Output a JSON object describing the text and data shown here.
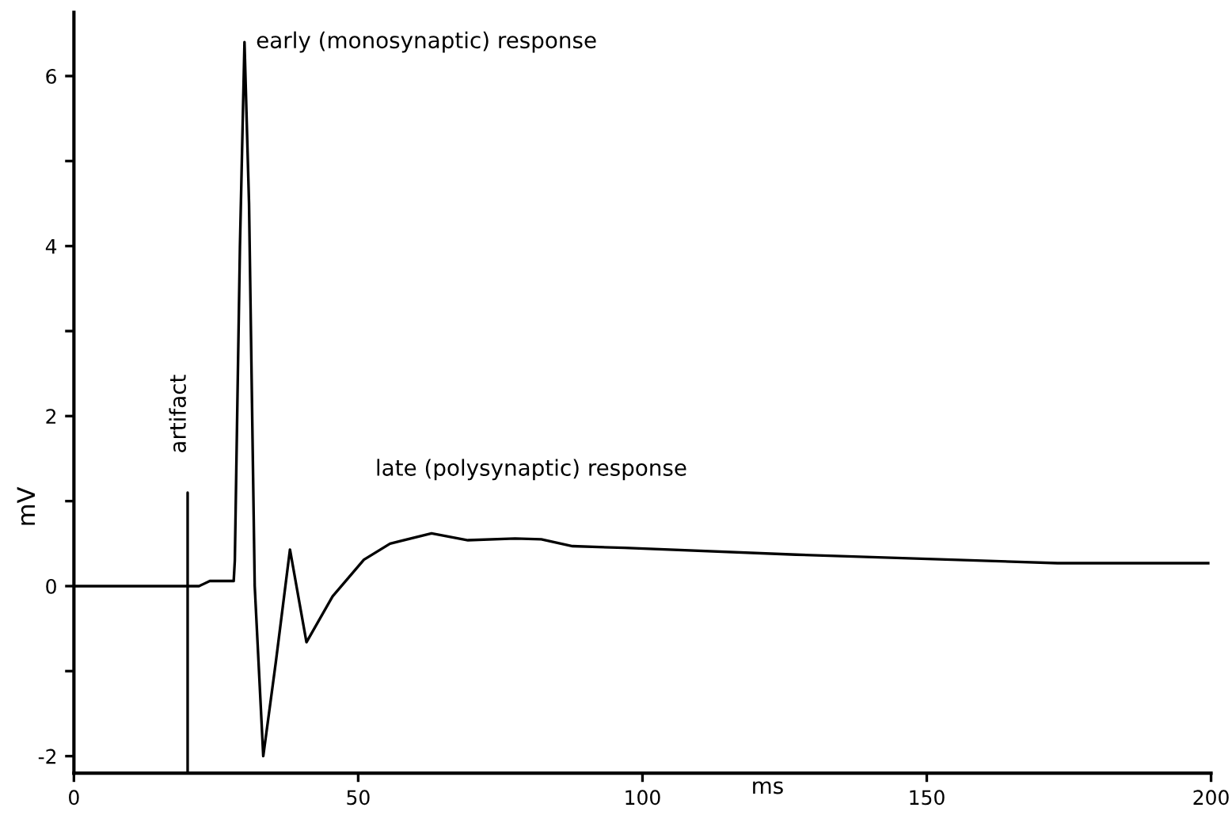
{
  "chart_data": {
    "type": "line",
    "xlabel": "ms",
    "ylabel": "mV",
    "series": [
      {
        "color": "#000000",
        "x": [
          0,
          10,
          20,
          20,
          20,
          20,
          22,
          23.9,
          28.1,
          28.3,
          29.2,
          30,
          30.8,
          31.8,
          33.3,
          35.5,
          38.0,
          40.9,
          45.5,
          51.0,
          55.6,
          62.9,
          69.3,
          77.6,
          82.2,
          87.7,
          96.8,
          127,
          173,
          199.5
        ],
        "values": [
          0,
          0,
          0,
          1.1,
          -2.2,
          0,
          0,
          0.06,
          0.06,
          0.3,
          4.0,
          6.4,
          4.5,
          0,
          -2.0,
          -0.9,
          0.43,
          -0.66,
          -0.12,
          0.31,
          0.5,
          0.62,
          0.54,
          0.56,
          0.55,
          0.47,
          0.45,
          0.37,
          0.27,
          0.27
        ]
      }
    ],
    "xlim": [
      0,
      200
    ],
    "xticks": [
      0,
      50,
      100,
      150,
      200
    ],
    "ylim": [
      -2.2,
      6.75
    ],
    "yticks": [
      -2,
      {
        "value": -1,
        "label": null
      },
      0,
      {
        "value": 1,
        "label": null
      },
      2,
      {
        "value": 3,
        "label": null
      },
      4,
      {
        "value": 5,
        "label": null
      },
      6
    ],
    "grid": false,
    "legend": false,
    "marker": "none",
    "line_style": "solid",
    "annotations": [
      {
        "text": "early (monosynaptic) response",
        "x": 31,
        "y": 6.4
      },
      "late (polysynaptic) response",
      "artifact"
    ]
  }
}
